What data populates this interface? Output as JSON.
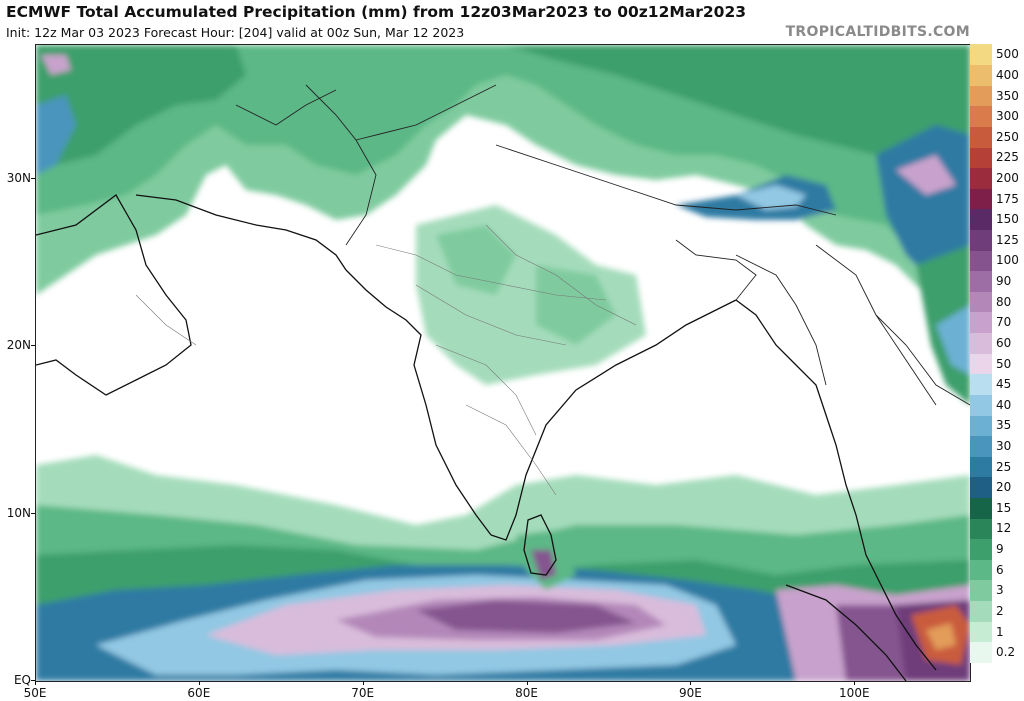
{
  "header": {
    "title": "ECMWF Total Accumulated Precipitation (mm) from 12z03Mar2023 to 00z12Mar2023",
    "subtitle": "Init: 12z Mar 03 2023   Forecast Hour: [204]   valid at 00z Sun, Mar 12 2023",
    "brand": "TROPICALTIDBITS.COM"
  },
  "map": {
    "lon_range": [
      50,
      107
    ],
    "lat_range": [
      0,
      38
    ],
    "x_ticks": [
      {
        "label": "50E",
        "lon": 50
      },
      {
        "label": "60E",
        "lon": 60
      },
      {
        "label": "70E",
        "lon": 70
      },
      {
        "label": "80E",
        "lon": 80
      },
      {
        "label": "90E",
        "lon": 90
      },
      {
        "label": "100E",
        "lon": 100
      }
    ],
    "y_ticks": [
      {
        "label": "EQ",
        "lat": 0
      },
      {
        "label": "10N",
        "lat": 10
      },
      {
        "label": "20N",
        "lat": 20
      },
      {
        "label": "30N",
        "lat": 30
      }
    ]
  },
  "colorbar": {
    "levels": [
      {
        "label": "0.2",
        "color": "#e8f8ee"
      },
      {
        "label": "1",
        "color": "#c6ecd4"
      },
      {
        "label": "2",
        "color": "#a4dcbb"
      },
      {
        "label": "3",
        "color": "#7fcb9f"
      },
      {
        "label": "6",
        "color": "#5cb886"
      },
      {
        "label": "9",
        "color": "#3d9f6c"
      },
      {
        "label": "12",
        "color": "#2a8559"
      },
      {
        "label": "15",
        "color": "#176548"
      },
      {
        "label": "20",
        "color": "#1f5f86"
      },
      {
        "label": "25",
        "color": "#2d7aa3"
      },
      {
        "label": "30",
        "color": "#4a95bd"
      },
      {
        "label": "35",
        "color": "#6cb0d3"
      },
      {
        "label": "40",
        "color": "#92c8e3"
      },
      {
        "label": "45",
        "color": "#b9def0"
      },
      {
        "label": "50",
        "color": "#ead5ea"
      },
      {
        "label": "60",
        "color": "#d9bcdb"
      },
      {
        "label": "70",
        "color": "#c8a2cc"
      },
      {
        "label": "80",
        "color": "#b388b9"
      },
      {
        "label": "90",
        "color": "#9c6ea5"
      },
      {
        "label": "100",
        "color": "#85548f"
      },
      {
        "label": "125",
        "color": "#6e3d7a"
      },
      {
        "label": "150",
        "color": "#5a2a66"
      },
      {
        "label": "175",
        "color": "#7d1f48"
      },
      {
        "label": "200",
        "color": "#9a2c3e"
      },
      {
        "label": "225",
        "color": "#b44038"
      },
      {
        "label": "250",
        "color": "#c95b3d"
      },
      {
        "label": "300",
        "color": "#d97b4a"
      },
      {
        "label": "350",
        "color": "#e39c5a"
      },
      {
        "label": "400",
        "color": "#ecbd6c"
      },
      {
        "label": "500",
        "color": "#f3da82"
      }
    ]
  }
}
